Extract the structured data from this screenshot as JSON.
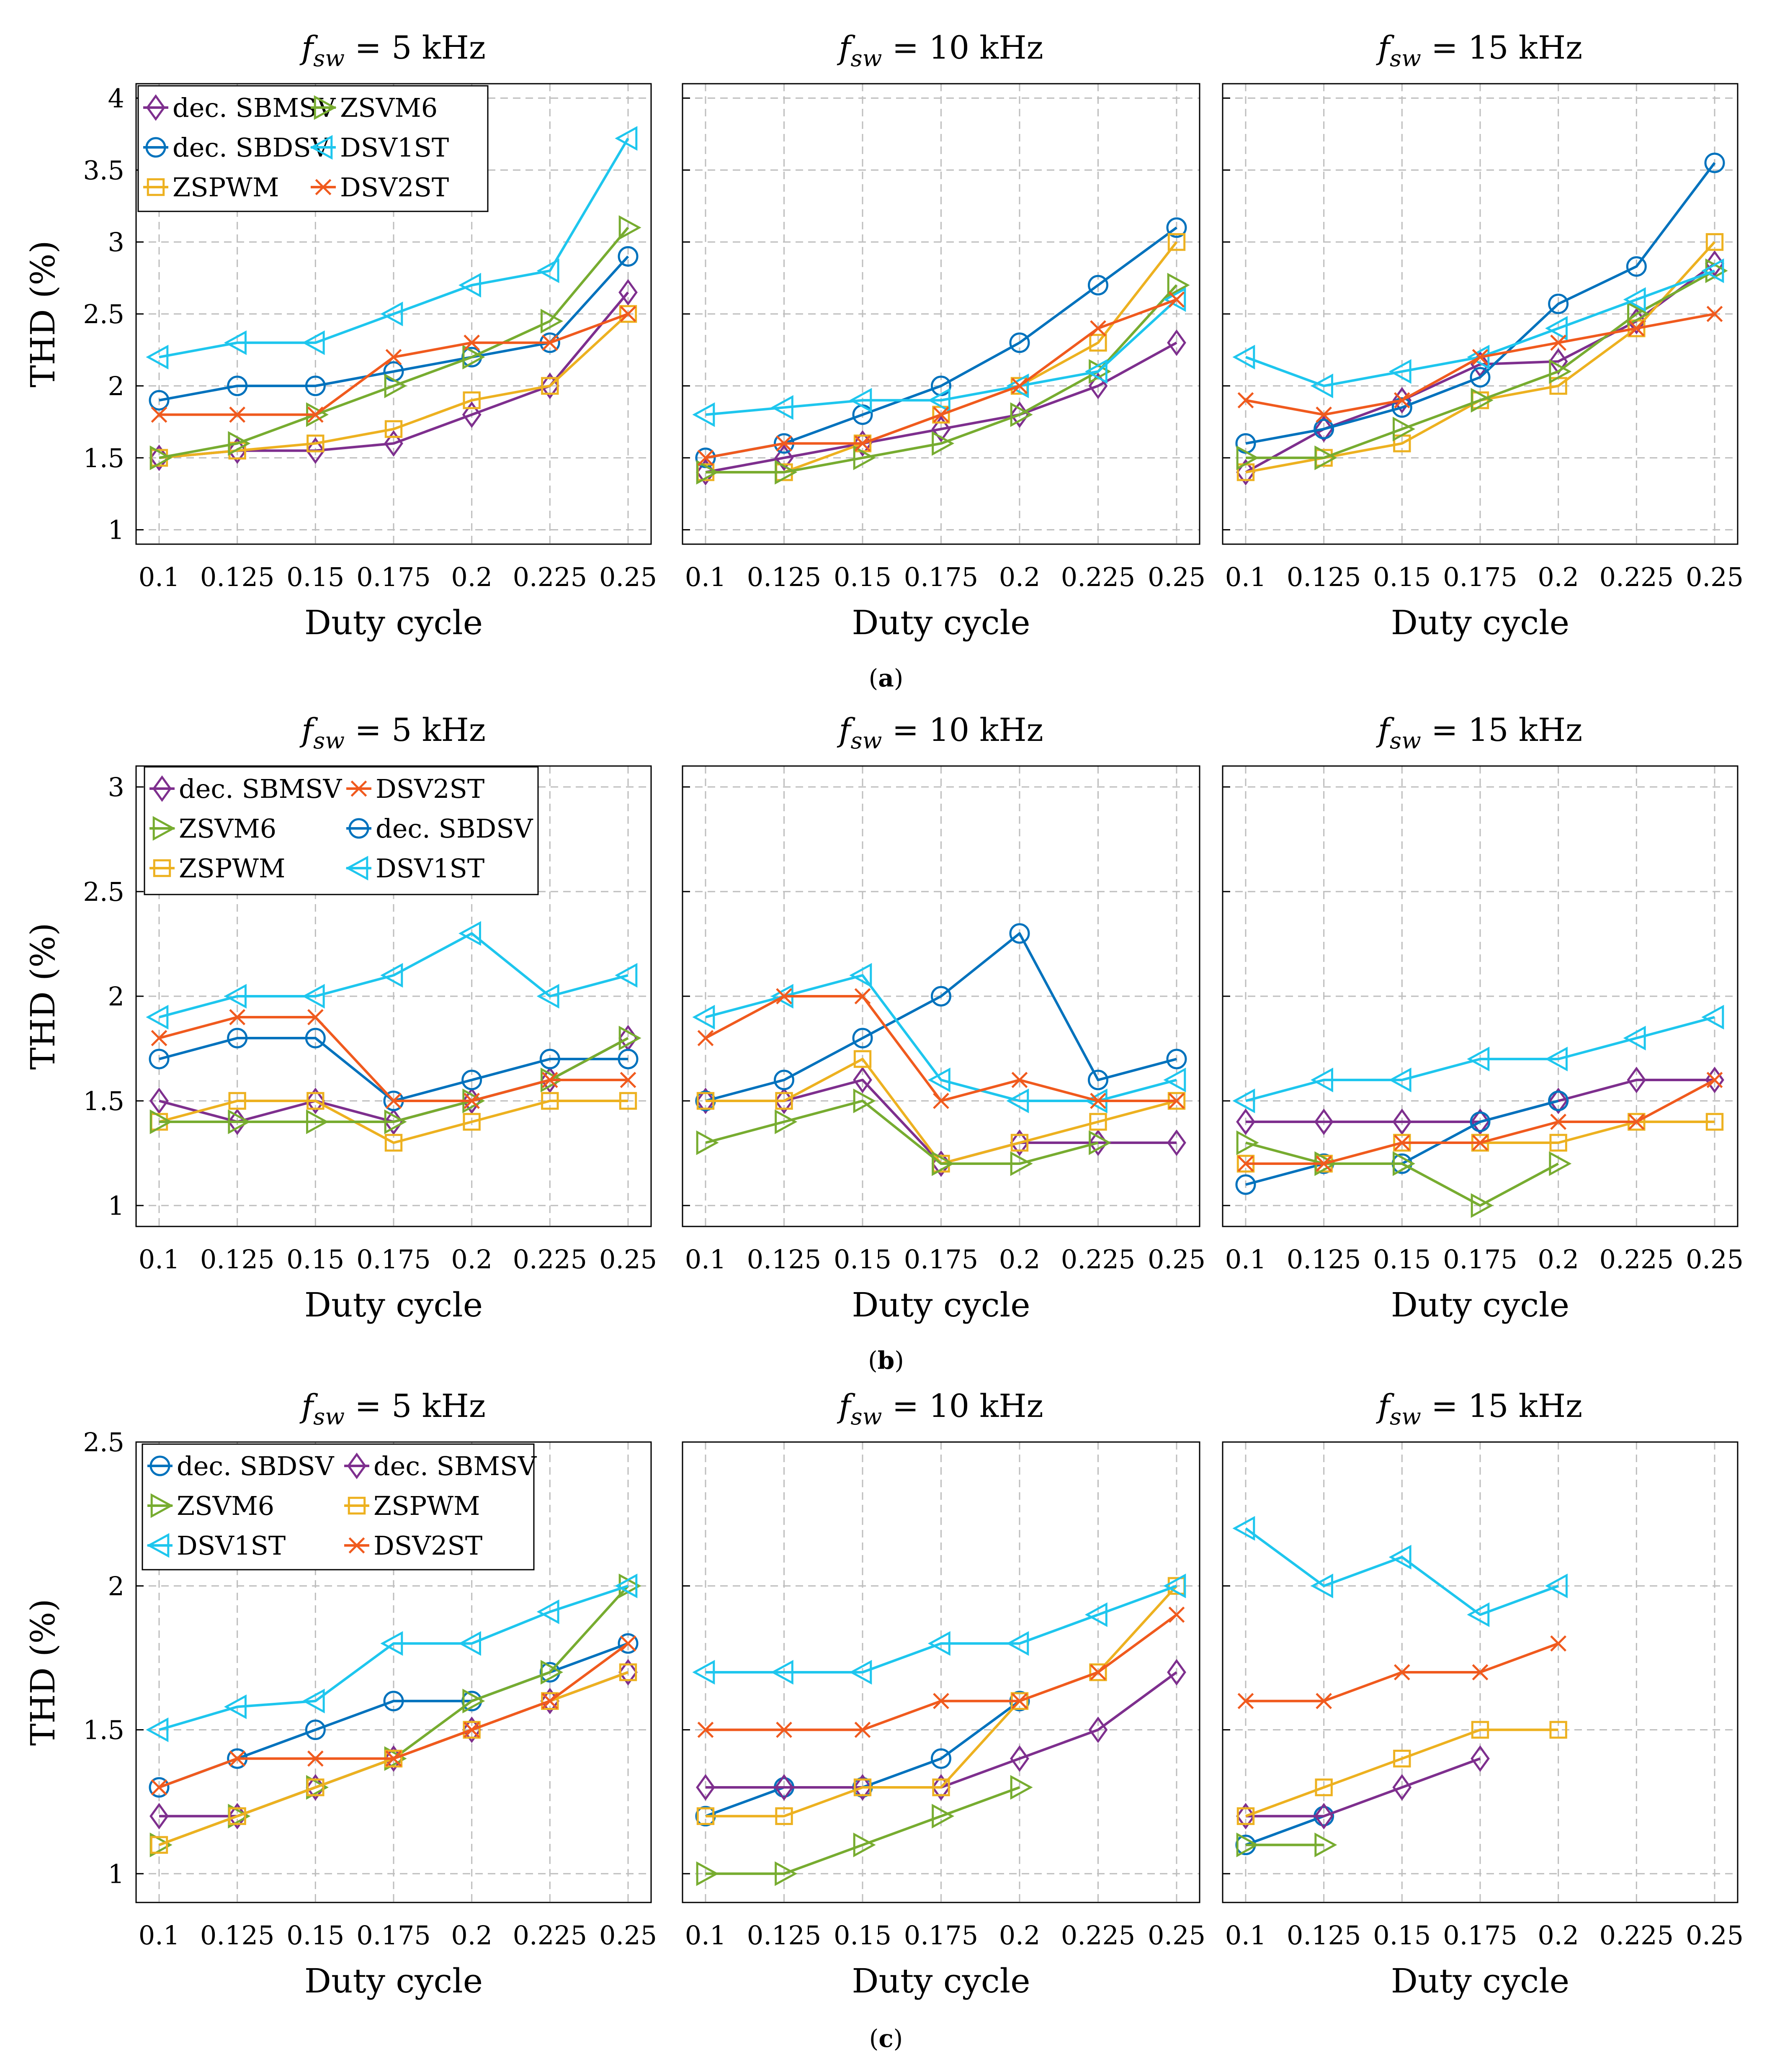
{
  "figure": {
    "ylabel": "THD (%)",
    "xlabel": "Duty cycle",
    "title_var": "f",
    "title_sub": "sw",
    "x_ticks": [
      "0.1",
      "0.125",
      "0.15",
      "0.175",
      "0.2",
      "0.225",
      "0.25"
    ]
  },
  "colors": {
    "dec. SBMSV": "#7E2F8E",
    "dec. SBDSV": "#0072BD",
    "ZSPWM": "#EDB120",
    "ZSVM6": "#77AC30",
    "DSV1ST": "#1EC6EE",
    "DSV2ST": "#F05A1E"
  },
  "markers": {
    "dec. SBMSV": "diamond",
    "dec. SBDSV": "circle",
    "ZSPWM": "square",
    "ZSVM6": "tri-right",
    "DSV1ST": "tri-left",
    "DSV2ST": "x"
  },
  "chart_data": [
    {
      "caption": "(a)",
      "type": "line",
      "ylim": [
        0.9,
        4.1
      ],
      "yticks": [
        1,
        1.5,
        2,
        2.5,
        3,
        3.5,
        4
      ],
      "ytick_labels": [
        "1",
        "1.5",
        "2",
        "2.5",
        "3",
        "3.5",
        "4"
      ],
      "x": [
        0.1,
        0.125,
        0.15,
        0.175,
        0.2,
        0.225,
        0.25
      ],
      "legend_order": [
        [
          "dec. SBMSV",
          "ZSVM6"
        ],
        [
          "dec. SBDSV",
          "DSV1ST"
        ],
        [
          "ZSPWM",
          "DSV2ST"
        ]
      ],
      "panels": [
        {
          "title": "= 5 kHz",
          "series": [
            {
              "name": "dec. SBMSV",
              "values": [
                1.5,
                1.55,
                1.55,
                1.6,
                1.8,
                2.0,
                2.65
              ]
            },
            {
              "name": "dec. SBDSV",
              "values": [
                1.9,
                2.0,
                2.0,
                2.1,
                2.2,
                2.3,
                2.9
              ]
            },
            {
              "name": "ZSPWM",
              "values": [
                1.5,
                1.55,
                1.6,
                1.7,
                1.9,
                2.0,
                2.5
              ]
            },
            {
              "name": "ZSVM6",
              "values": [
                1.5,
                1.6,
                1.8,
                2.0,
                2.2,
                2.45,
                3.1
              ]
            },
            {
              "name": "DSV1ST",
              "values": [
                2.2,
                2.3,
                2.3,
                2.5,
                2.7,
                2.8,
                3.72
              ]
            },
            {
              "name": "DSV2ST",
              "values": [
                1.8,
                1.8,
                1.8,
                2.2,
                2.3,
                2.3,
                2.5
              ]
            }
          ]
        },
        {
          "title": "= 10 kHz",
          "series": [
            {
              "name": "dec. SBMSV",
              "values": [
                1.4,
                1.5,
                1.6,
                1.7,
                1.8,
                2.0,
                2.3
              ]
            },
            {
              "name": "dec. SBDSV",
              "values": [
                1.5,
                1.6,
                1.8,
                2.0,
                2.3,
                2.7,
                3.1
              ]
            },
            {
              "name": "ZSPWM",
              "values": [
                1.4,
                1.4,
                1.6,
                1.8,
                2.0,
                2.3,
                3.0
              ]
            },
            {
              "name": "ZSVM6",
              "values": [
                1.4,
                1.4,
                1.5,
                1.6,
                1.8,
                2.1,
                2.7
              ]
            },
            {
              "name": "DSV1ST",
              "values": [
                1.8,
                1.85,
                1.9,
                1.9,
                2.0,
                2.1,
                2.6
              ]
            },
            {
              "name": "DSV2ST",
              "values": [
                1.5,
                1.6,
                1.6,
                1.8,
                2.0,
                2.4,
                2.6
              ]
            }
          ]
        },
        {
          "title": "= 15 kHz",
          "series": [
            {
              "name": "dec. SBMSV",
              "values": [
                1.4,
                1.7,
                1.9,
                2.15,
                2.17,
                2.45,
                2.85
              ]
            },
            {
              "name": "dec. SBDSV",
              "values": [
                1.6,
                1.7,
                1.85,
                2.06,
                2.57,
                2.83,
                3.55
              ]
            },
            {
              "name": "ZSPWM",
              "values": [
                1.4,
                1.5,
                1.6,
                1.9,
                2.0,
                2.4,
                3.0
              ]
            },
            {
              "name": "ZSVM6",
              "values": [
                1.5,
                1.5,
                1.7,
                1.9,
                2.1,
                2.5,
                2.8
              ]
            },
            {
              "name": "DSV1ST",
              "values": [
                2.2,
                2.0,
                2.1,
                2.2,
                2.4,
                2.6,
                2.8
              ]
            },
            {
              "name": "DSV2ST",
              "values": [
                1.9,
                1.8,
                1.9,
                2.2,
                2.3,
                2.4,
                2.5
              ]
            }
          ]
        }
      ]
    },
    {
      "caption": "(b)",
      "type": "line",
      "ylim": [
        0.9,
        3.1
      ],
      "yticks": [
        1,
        1.5,
        2,
        2.5,
        3
      ],
      "ytick_labels": [
        "1",
        "1.5",
        "2",
        "2.5",
        "3"
      ],
      "x": [
        0.1,
        0.125,
        0.15,
        0.175,
        0.2,
        0.225,
        0.25
      ],
      "legend_order": [
        [
          "dec. SBMSV",
          "DSV2ST"
        ],
        [
          "ZSVM6",
          "dec. SBDSV"
        ],
        [
          "ZSPWM",
          "DSV1ST"
        ]
      ],
      "panels": [
        {
          "title": "= 5 kHz",
          "series": [
            {
              "name": "dec. SBMSV",
              "values": [
                1.5,
                1.4,
                1.5,
                1.4,
                1.5,
                1.6,
                1.8
              ]
            },
            {
              "name": "dec. SBDSV",
              "values": [
                1.7,
                1.8,
                1.8,
                1.5,
                1.6,
                1.7,
                1.7
              ]
            },
            {
              "name": "ZSPWM",
              "values": [
                1.4,
                1.5,
                1.5,
                1.3,
                1.4,
                1.5,
                1.5
              ]
            },
            {
              "name": "ZSVM6",
              "values": [
                1.4,
                1.4,
                1.4,
                1.4,
                1.5,
                1.6,
                1.8
              ]
            },
            {
              "name": "DSV1ST",
              "values": [
                1.9,
                2.0,
                2.0,
                2.1,
                2.3,
                2.0,
                2.1
              ]
            },
            {
              "name": "DSV2ST",
              "values": [
                1.8,
                1.9,
                1.9,
                1.5,
                1.5,
                1.6,
                1.6
              ]
            }
          ]
        },
        {
          "title": "= 10 kHz",
          "series": [
            {
              "name": "dec. SBMSV",
              "values": [
                1.5,
                1.5,
                1.6,
                1.2,
                1.3,
                1.3,
                1.3
              ]
            },
            {
              "name": "dec. SBDSV",
              "values": [
                1.5,
                1.6,
                1.8,
                2.0,
                2.3,
                1.6,
                1.7
              ]
            },
            {
              "name": "ZSPWM",
              "values": [
                1.5,
                1.5,
                1.7,
                1.2,
                1.3,
                1.4,
                1.5
              ]
            },
            {
              "name": "ZSVM6",
              "values": [
                1.3,
                1.4,
                1.5,
                1.2,
                1.2,
                1.3,
                null
              ]
            },
            {
              "name": "DSV1ST",
              "values": [
                1.9,
                2.0,
                2.1,
                1.6,
                1.5,
                1.5,
                1.6
              ]
            },
            {
              "name": "DSV2ST",
              "values": [
                1.8,
                2.0,
                2.0,
                1.5,
                1.6,
                1.5,
                1.5
              ]
            }
          ]
        },
        {
          "title": "= 15 kHz",
          "series": [
            {
              "name": "dec. SBMSV",
              "values": [
                1.4,
                1.4,
                1.4,
                1.4,
                1.5,
                1.6,
                1.6
              ]
            },
            {
              "name": "dec. SBDSV",
              "values": [
                1.1,
                1.2,
                1.2,
                1.4,
                1.5,
                null,
                null
              ]
            },
            {
              "name": "ZSPWM",
              "values": [
                1.2,
                1.2,
                1.3,
                1.3,
                1.3,
                1.4,
                1.4
              ]
            },
            {
              "name": "ZSVM6",
              "values": [
                1.3,
                1.2,
                1.2,
                1.0,
                1.2,
                null,
                null
              ]
            },
            {
              "name": "DSV1ST",
              "values": [
                1.5,
                1.6,
                1.6,
                1.7,
                1.7,
                1.8,
                1.9
              ]
            },
            {
              "name": "DSV2ST",
              "values": [
                1.2,
                1.2,
                1.3,
                1.3,
                1.4,
                1.4,
                1.6
              ]
            }
          ]
        }
      ]
    },
    {
      "caption": "(c)",
      "type": "line",
      "ylim": [
        0.9,
        2.5
      ],
      "yticks": [
        1,
        1.5,
        2,
        2.5
      ],
      "ytick_labels": [
        "1",
        "1.5",
        "2",
        "2.5"
      ],
      "x": [
        0.1,
        0.125,
        0.15,
        0.175,
        0.2,
        0.225,
        0.25
      ],
      "legend_order": [
        [
          "dec. SBDSV",
          "dec. SBMSV"
        ],
        [
          "ZSVM6",
          "ZSPWM"
        ],
        [
          "DSV1ST",
          "DSV2ST"
        ]
      ],
      "panels": [
        {
          "title": "= 5 kHz",
          "series": [
            {
              "name": "dec. SBDSV",
              "values": [
                1.3,
                1.4,
                1.5,
                1.6,
                1.6,
                1.7,
                1.8
              ]
            },
            {
              "name": "dec. SBMSV",
              "values": [
                1.2,
                1.2,
                1.3,
                1.4,
                1.5,
                1.6,
                1.7
              ]
            },
            {
              "name": "ZSVM6",
              "values": [
                1.1,
                1.2,
                1.3,
                1.4,
                1.6,
                1.7,
                2.0
              ]
            },
            {
              "name": "ZSPWM",
              "values": [
                1.1,
                1.2,
                1.3,
                1.4,
                1.5,
                1.6,
                1.7
              ]
            },
            {
              "name": "DSV1ST",
              "values": [
                1.5,
                1.58,
                1.6,
                1.8,
                1.8,
                1.91,
                2.0
              ]
            },
            {
              "name": "DSV2ST",
              "values": [
                1.3,
                1.4,
                1.4,
                1.4,
                1.5,
                1.6,
                1.8
              ]
            }
          ]
        },
        {
          "title": "= 10 kHz",
          "series": [
            {
              "name": "dec. SBDSV",
              "values": [
                1.2,
                1.3,
                1.3,
                1.4,
                1.6,
                null,
                null
              ]
            },
            {
              "name": "dec. SBMSV",
              "values": [
                1.3,
                1.3,
                1.3,
                1.3,
                1.4,
                1.5,
                1.7
              ]
            },
            {
              "name": "ZSVM6",
              "values": [
                1.0,
                1.0,
                1.1,
                1.2,
                1.3,
                null,
                null
              ]
            },
            {
              "name": "ZSPWM",
              "values": [
                1.2,
                1.2,
                1.3,
                1.3,
                1.6,
                1.7,
                2.0
              ]
            },
            {
              "name": "DSV1ST",
              "values": [
                1.7,
                1.7,
                1.7,
                1.8,
                1.8,
                1.9,
                2.0
              ]
            },
            {
              "name": "DSV2ST",
              "values": [
                1.5,
                1.5,
                1.5,
                1.6,
                1.6,
                1.7,
                1.9
              ]
            }
          ]
        },
        {
          "title": "= 15 kHz",
          "series": [
            {
              "name": "dec. SBDSV",
              "values": [
                1.1,
                1.2,
                null,
                null,
                null,
                null,
                null
              ]
            },
            {
              "name": "dec. SBMSV",
              "values": [
                1.2,
                1.2,
                1.3,
                1.4,
                null,
                null,
                null
              ]
            },
            {
              "name": "ZSVM6",
              "values": [
                1.1,
                1.1,
                null,
                null,
                null,
                null,
                null
              ]
            },
            {
              "name": "ZSPWM",
              "values": [
                1.2,
                1.3,
                1.4,
                1.5,
                1.5,
                null,
                null
              ]
            },
            {
              "name": "DSV1ST",
              "values": [
                2.2,
                2.0,
                2.1,
                1.9,
                2.0,
                null,
                null
              ]
            },
            {
              "name": "DSV2ST",
              "values": [
                1.6,
                1.6,
                1.7,
                1.7,
                1.8,
                null,
                null
              ]
            }
          ]
        }
      ]
    }
  ]
}
